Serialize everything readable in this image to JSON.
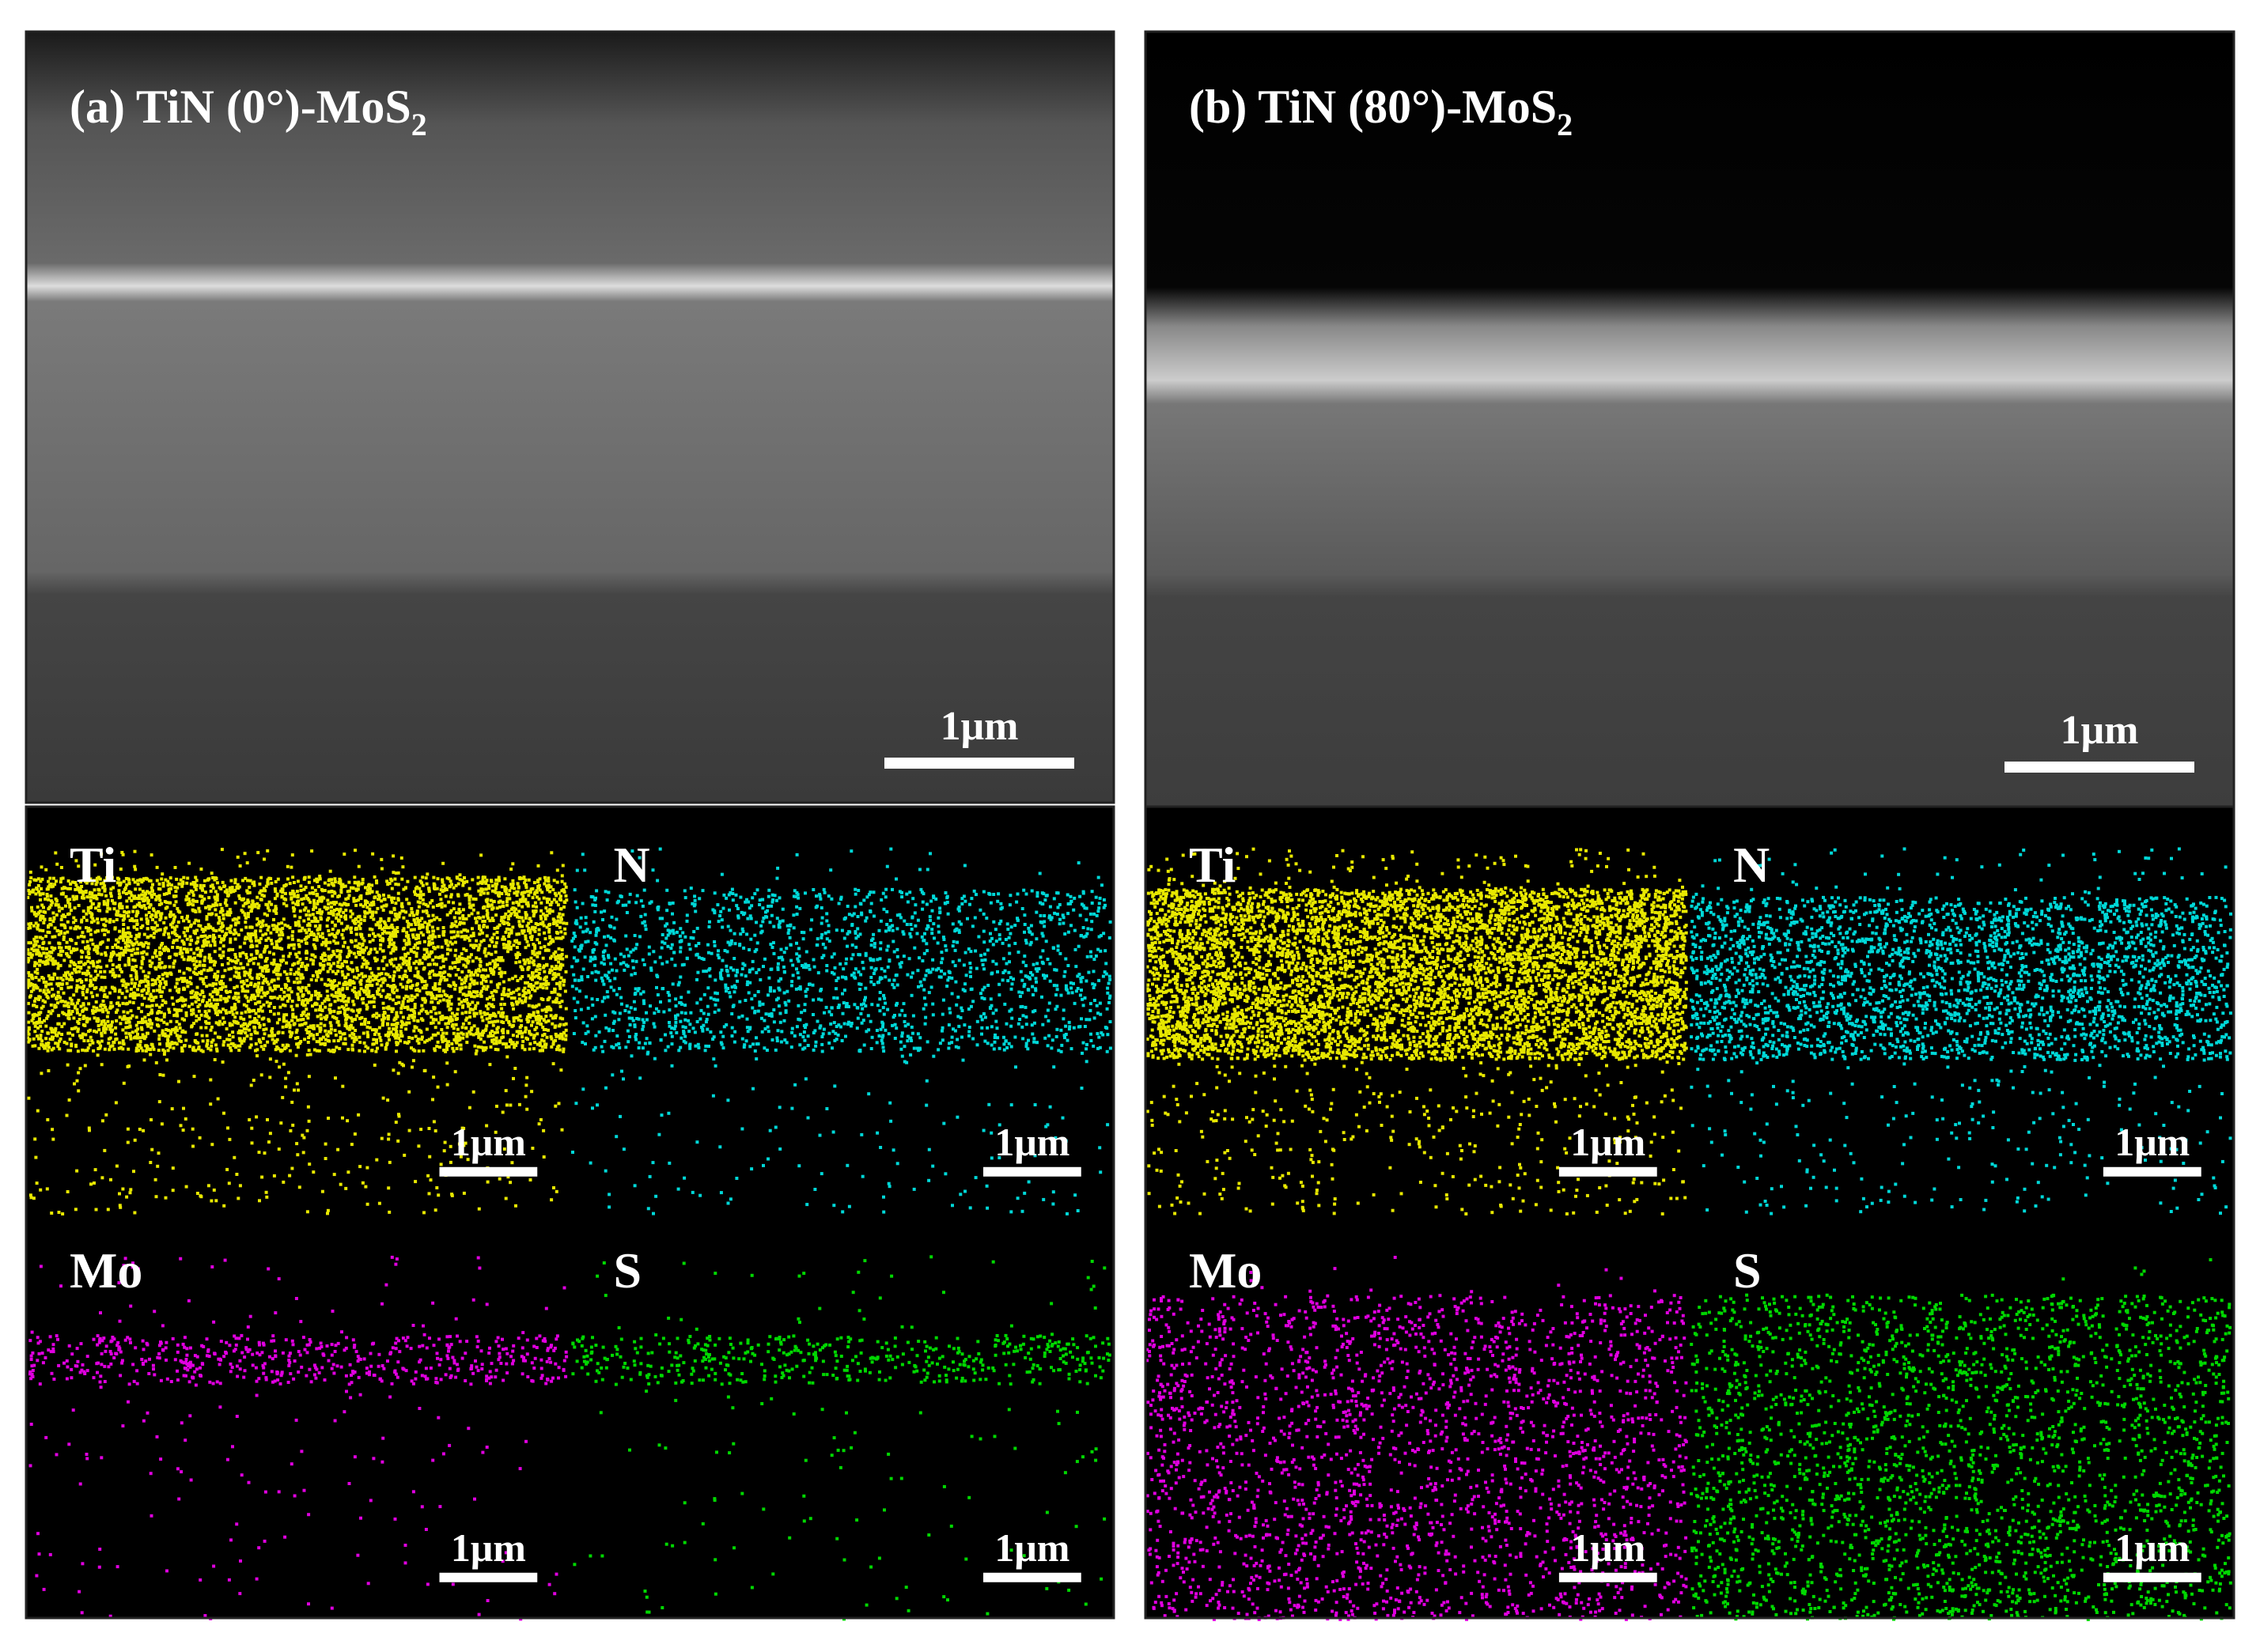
{
  "panels": [
    {
      "title": "(a) TiN (0°)-MoS",
      "title_sub": "2",
      "sem_scale": "1μm",
      "maps": [
        {
          "element": "Ti",
          "scale": "1μm"
        },
        {
          "element": "N",
          "scale": "1μm"
        },
        {
          "element": "Mo",
          "scale": "1μm"
        },
        {
          "element": "S",
          "scale": "1μm"
        }
      ]
    },
    {
      "title": "(b) TiN (80°)-MoS",
      "title_sub": "2",
      "sem_scale": "1μm",
      "maps": [
        {
          "element": "Ti",
          "scale": "1μm"
        },
        {
          "element": "N",
          "scale": "1μm"
        },
        {
          "element": "Mo",
          "scale": "1μm"
        },
        {
          "element": "S",
          "scale": "1μm"
        }
      ]
    }
  ]
}
